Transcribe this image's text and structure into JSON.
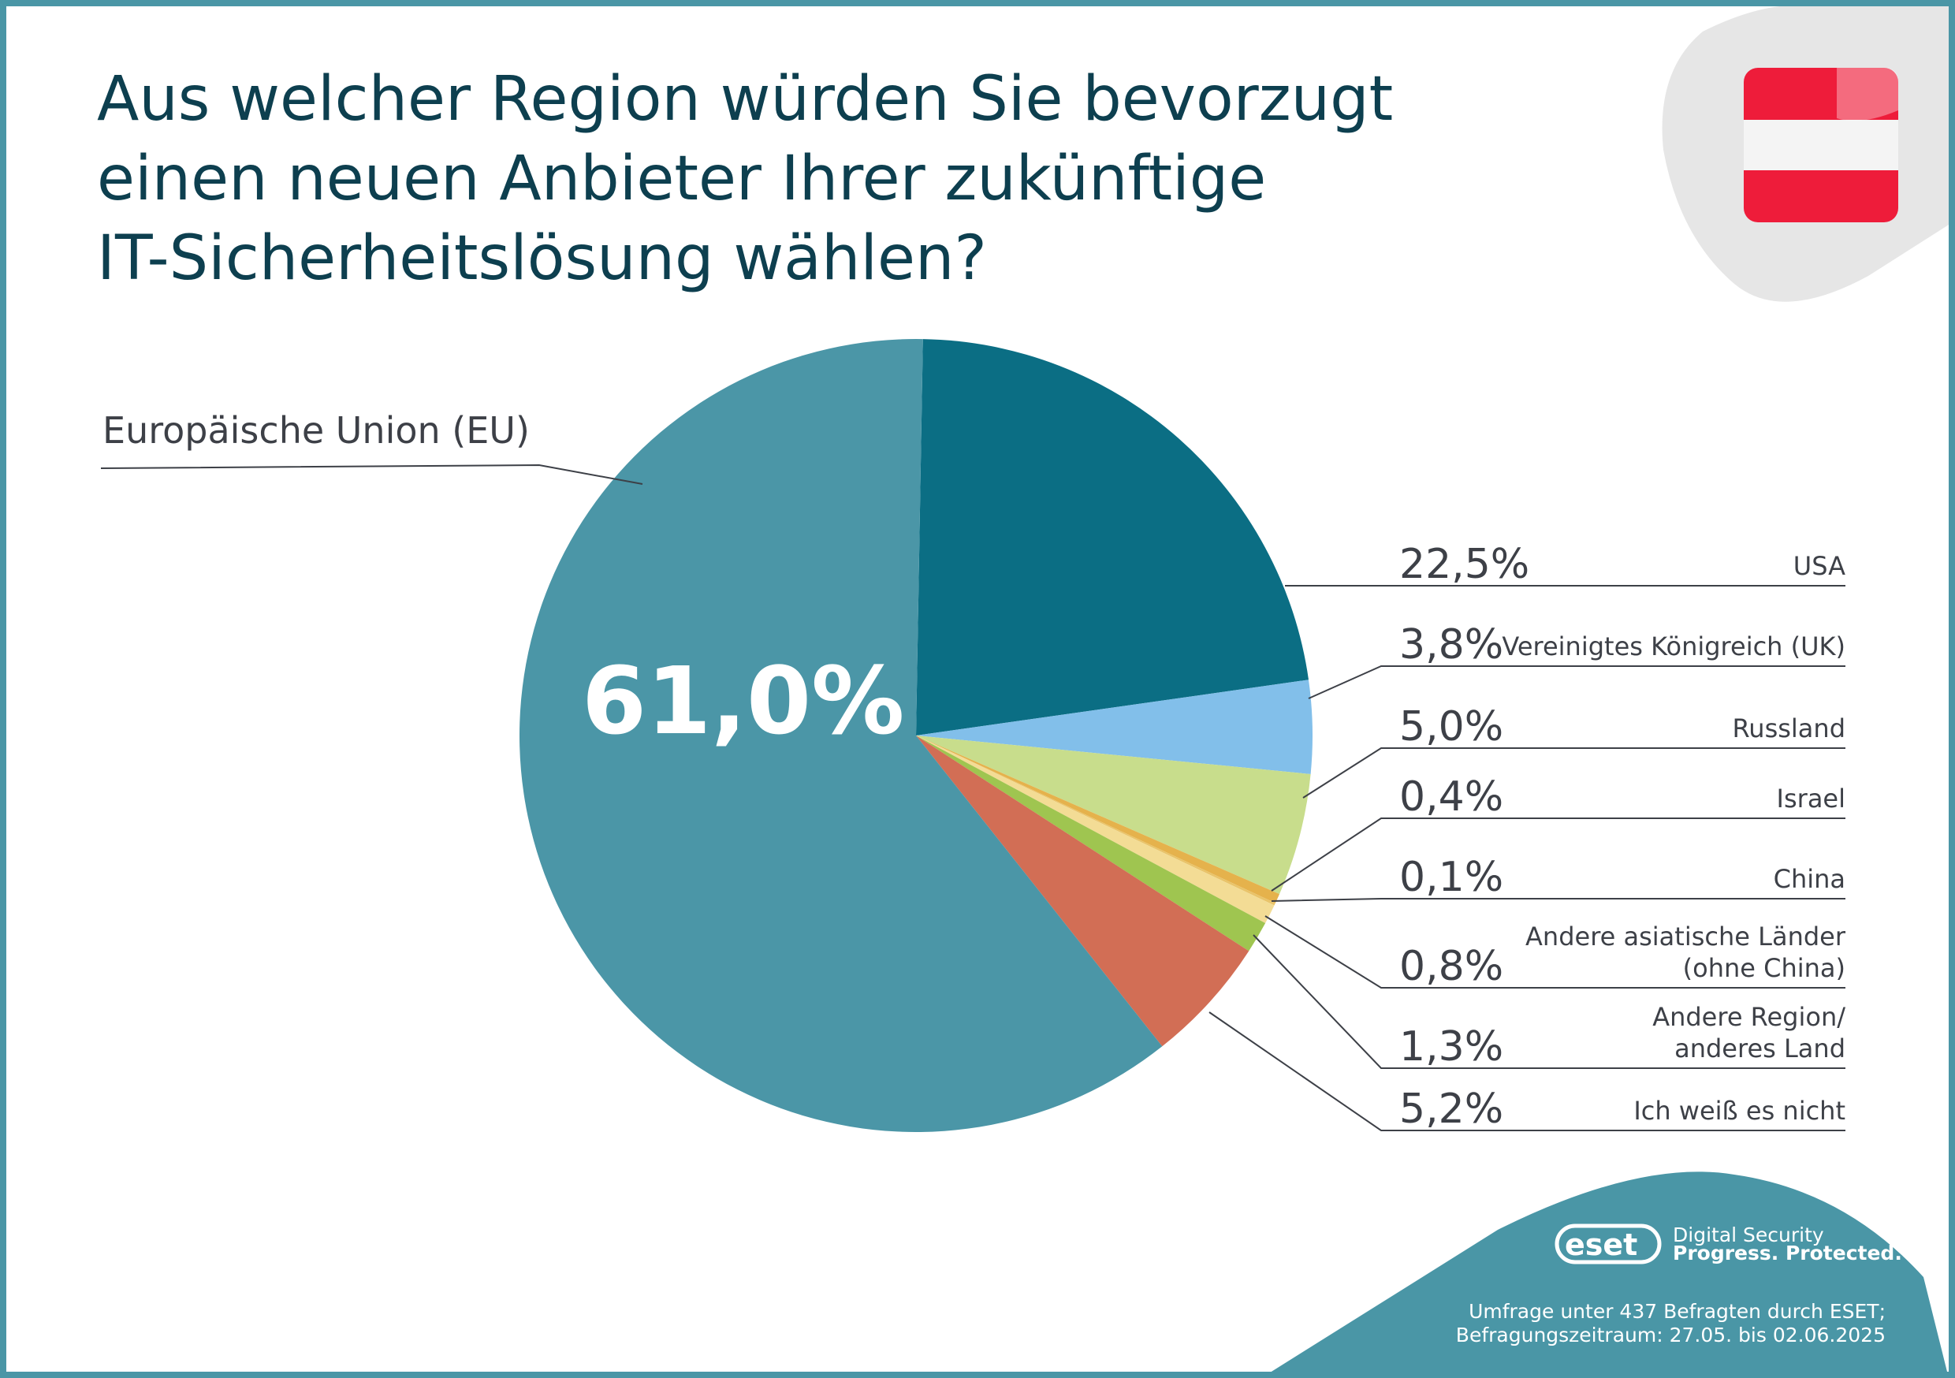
{
  "title": [
    "Aus welcher Region würden Sie bevorzugt",
    "einen neuen Anbieter Ihrer zukünftige",
    "IT-Sicherheitslösung wählen?"
  ],
  "colors": {
    "frame": "#4a96a6",
    "title": "#0d3f4f",
    "flag_red": "#ee1c3a"
  },
  "chart_data": {
    "type": "pie",
    "unit": "%",
    "slices": [
      {
        "label": "USA",
        "value": 22.5,
        "display": "22,5%",
        "color": "#0b6e84"
      },
      {
        "label": "Vereinigtes Königreich (UK)",
        "value": 3.8,
        "display": "3,8%",
        "color": "#82bfea"
      },
      {
        "label": "Russland",
        "value": 5.0,
        "display": "5,0%",
        "color": "#c8dd8c"
      },
      {
        "label": "Israel",
        "value": 0.4,
        "display": "0,4%",
        "color": "#e5b24c"
      },
      {
        "label": "China",
        "value": 0.1,
        "display": "0,1%",
        "color": "#e9c46a"
      },
      {
        "label": [
          "Andere asiatische Länder",
          "(ohne China)"
        ],
        "value": 0.8,
        "display": "0,8%",
        "color": "#f3dc95"
      },
      {
        "label": [
          "Andere Region/",
          "anderes Land"
        ],
        "value": 1.3,
        "display": "1,3%",
        "color": "#9fc550"
      },
      {
        "label": "Ich weiß es nicht",
        "value": 5.2,
        "display": "5,2%",
        "color": "#d26e55"
      },
      {
        "label": "Europäische Union (EU)",
        "value": 61.0,
        "display": "61,0%",
        "color": "#4b96a7"
      }
    ]
  },
  "logo": {
    "brand": "eset",
    "tagline1": "Digital Security",
    "tagline2": "Progress. Protected."
  },
  "footnote": [
    "Umfrage unter 437 Befragten durch ESET;",
    "Befragungszeitraum: 27.05. bis 02.06.2025"
  ]
}
